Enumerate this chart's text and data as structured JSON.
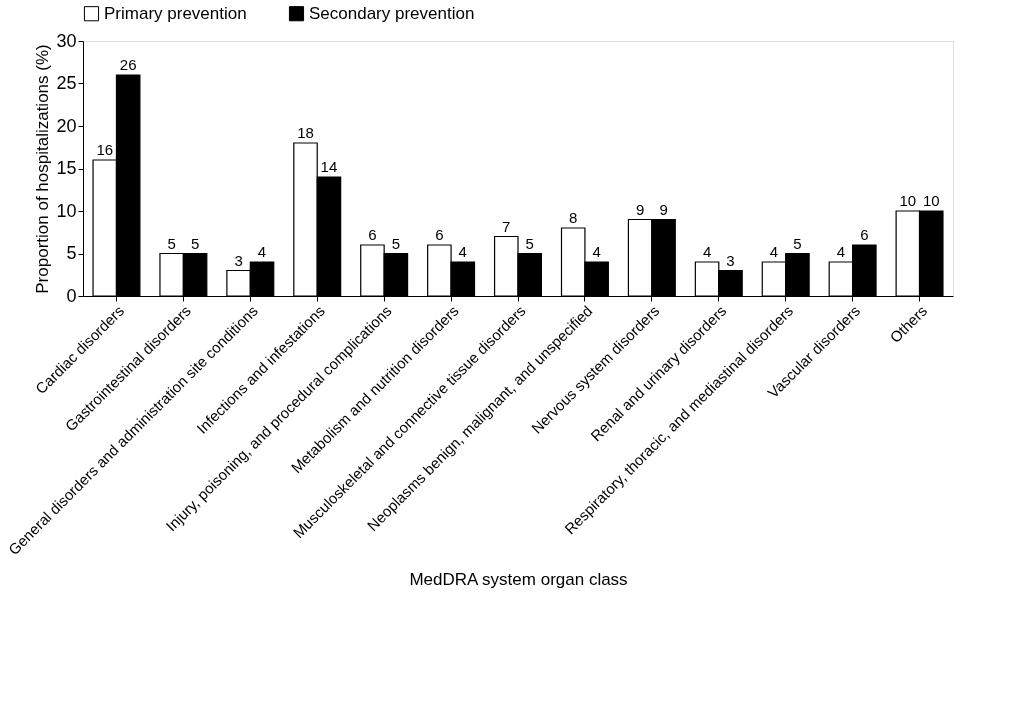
{
  "chart_data": {
    "type": "bar",
    "xlabel": "MedDRA system organ class",
    "ylabel": "Proportion of hospitalizations (%)",
    "categories": [
      "Cardiac disorders",
      "Gastrointestinal disorders",
      "General disorders and administration site conditions",
      "Infections and infestations",
      "Injury, poisoning, and procedural complications",
      "Metabolism and nutrition disorders",
      "Musculoskeletal and connective tissue disorders",
      "Neoplasms benign, malignant, and unspecified",
      "Nervous system disorders",
      "Renal and urinary disorders",
      "Respiratory, thoracic, and mediastinal disorders",
      "Vascular disorders",
      "Others"
    ],
    "series": [
      {
        "name": "Primary prevention",
        "color": "#ffffff",
        "values": [
          16,
          5,
          3,
          18,
          6,
          6,
          7,
          8,
          9,
          4,
          4,
          4,
          10
        ]
      },
      {
        "name": "Secondary prevention",
        "color": "#000000",
        "values": [
          26,
          5,
          4,
          14,
          5,
          4,
          5,
          4,
          9,
          3,
          5,
          6,
          10
        ]
      }
    ],
    "ylim": [
      0,
      30
    ],
    "yticks": [
      0,
      5,
      10,
      15,
      20,
      25,
      30
    ],
    "data_labels": true,
    "legend": "top",
    "grid": false
  }
}
